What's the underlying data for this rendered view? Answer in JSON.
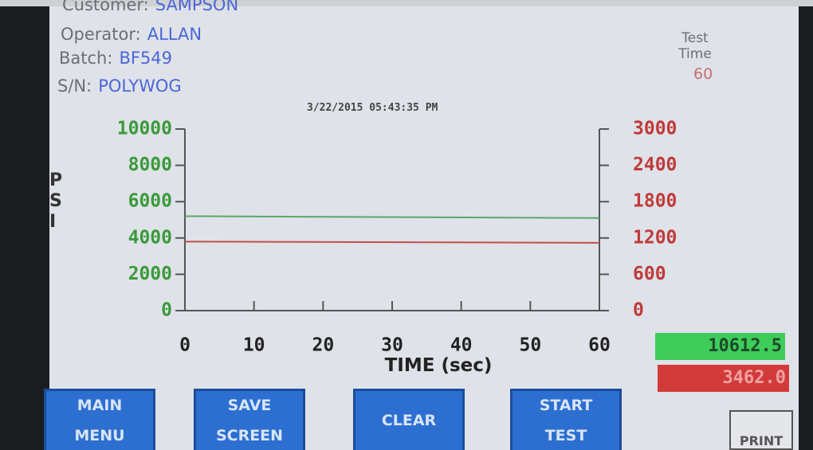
{
  "header": {
    "customer_label": "Customer:",
    "customer": "SAMPSON",
    "operator_label": "Operator:",
    "operator": "ALLAN",
    "batch_label": "Batch:",
    "batch": "BF549",
    "sn_label": "S/N:",
    "sn": "POLYWOG",
    "test_time_label": "Test Time",
    "test_time": "60",
    "timestamp": "3/22/2015 05:43:35 PM"
  },
  "chart_data": {
    "type": "line",
    "ylabel": "PSI",
    "xlabel": "TIME (sec)",
    "x": [
      0,
      60
    ],
    "series": [
      {
        "color": "#5aa86a",
        "values": [
          5200,
          5100
        ]
      },
      {
        "color": "#c0504d",
        "values": [
          1140,
          1120
        ],
        "axis": "y2"
      }
    ],
    "xlim": [
      0,
      60
    ],
    "xticks": [
      0,
      10,
      20,
      30,
      40,
      50,
      60
    ],
    "ylim": [
      0,
      10000
    ],
    "yticks": [
      0,
      2000,
      4000,
      6000,
      8000,
      10000
    ],
    "ytick_color": "#3a9a3a",
    "y2lim": [
      0,
      3000
    ],
    "y2ticks": [
      0,
      600,
      1200,
      1800,
      2400,
      3000
    ],
    "y2tick_color": "#c03a3a"
  },
  "readouts": [
    "10612.5",
    "3462.0"
  ],
  "buttons": [
    "MAIN MENU",
    "SAVE SCREEN",
    "CLEAR",
    "START TEST"
  ],
  "print": "PRINT"
}
